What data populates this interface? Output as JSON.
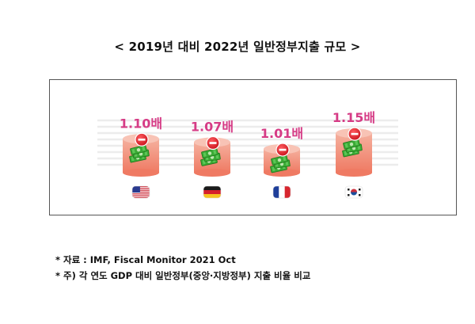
{
  "page_title": "< 2019년 대비 2022년 일반정부지출 규모 >",
  "chart_data": {
    "type": "bar",
    "title": "< 2019년 대비 2022년 일반정부지출 규모 >",
    "categories": [
      "United States",
      "Germany",
      "France",
      "South Korea"
    ],
    "values": [
      1.1,
      1.07,
      1.01,
      1.15
    ],
    "value_labels": [
      "1.10배",
      "1.07배",
      "1.01배",
      "1.15배"
    ],
    "unit": "배",
    "ylim": [
      0.8,
      1.2
    ],
    "xlabel": "",
    "ylabel": "",
    "legend": "none",
    "colors": {
      "bar_top": "#f5b09e",
      "bar_bottom": "#ef7a63",
      "label": "#d63c86",
      "grid": "#ececec",
      "money": "#3aa935",
      "badge": "#e0242a"
    }
  },
  "flags": [
    {
      "country": "United States",
      "icon": "us-flag-icon"
    },
    {
      "country": "Germany",
      "icon": "germany-flag-icon"
    },
    {
      "country": "France",
      "icon": "france-flag-icon"
    },
    {
      "country": "South Korea",
      "icon": "korea-flag-icon"
    }
  ],
  "notes": {
    "source": "* 자료 : IMF, Fiscal Monitor 2021 Oct",
    "footnote": "* 주) 각 연도 GDP 대비 일반정부(중앙·지방정부) 지출 비율 비교"
  }
}
